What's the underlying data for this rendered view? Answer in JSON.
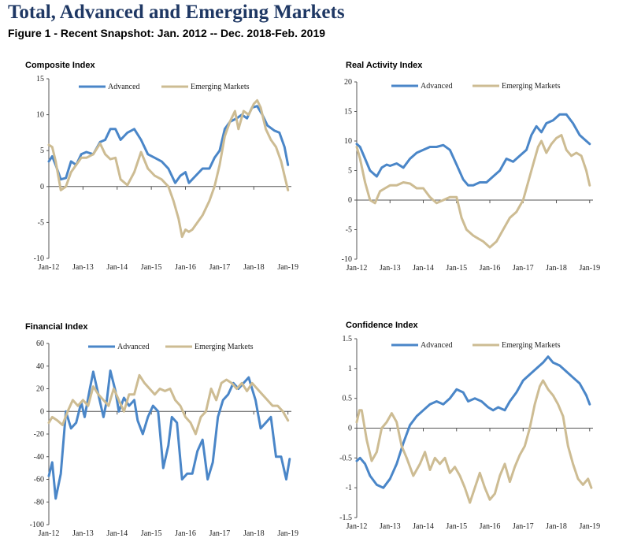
{
  "header": {
    "title": "Total, Advanced and Emerging Markets",
    "subtitle": "Figure 1 - Recent Snapshot: Jan. 2012 -- Dec. 2018-Feb. 2019"
  },
  "colors": {
    "advanced": "#4a86c8",
    "emerging": "#cdbc93",
    "axis": "#555555"
  },
  "chart_data": [
    {
      "type": "line",
      "title": "Composite Index",
      "xlabel": "",
      "ylabel": "",
      "x_ticks": [
        "Jan-12",
        "Jan-13",
        "Jan-14",
        "Jan-15",
        "Jan-16",
        "Jan-17",
        "Jan-18",
        "Jan-19"
      ],
      "x_range": [
        2012.0,
        2019.1
      ],
      "y_ticks": [
        "15",
        "10",
        "5",
        "0",
        "-5",
        "-10"
      ],
      "ylim": [
        -10,
        15
      ],
      "legend_position": "top",
      "series": [
        {
          "name": "Advanced",
          "x": [
            2012.0,
            2012.1,
            2012.2,
            2012.35,
            2012.5,
            2012.65,
            2012.8,
            2012.95,
            2013.1,
            2013.3,
            2013.5,
            2013.65,
            2013.8,
            2013.95,
            2014.1,
            2014.3,
            2014.5,
            2014.7,
            2014.9,
            2015.1,
            2015.3,
            2015.5,
            2015.7,
            2015.85,
            2016.0,
            2016.1,
            2016.3,
            2016.5,
            2016.7,
            2016.85,
            2017.0,
            2017.15,
            2017.3,
            2017.5,
            2017.65,
            2017.8,
            2017.95,
            2018.1,
            2018.25,
            2018.4,
            2018.6,
            2018.75,
            2018.9,
            2019.0
          ],
          "y": [
            3.5,
            4.2,
            3,
            1,
            1.2,
            3.5,
            3,
            4.5,
            4.8,
            4.5,
            6.2,
            6.5,
            8,
            8,
            6.5,
            7.5,
            8,
            6.5,
            4.5,
            4,
            3.5,
            2.5,
            0.5,
            1.5,
            2,
            0.5,
            1.5,
            2.5,
            2.5,
            4,
            5,
            8,
            9,
            9.5,
            10,
            9.5,
            11,
            11.2,
            10,
            8.5,
            7.8,
            7.5,
            5.5,
            3
          ]
        },
        {
          "name": "Emerging Markets",
          "x": [
            2012.0,
            2012.1,
            2012.2,
            2012.35,
            2012.5,
            2012.65,
            2012.8,
            2012.95,
            2013.1,
            2013.3,
            2013.5,
            2013.65,
            2013.8,
            2013.95,
            2014.1,
            2014.3,
            2014.5,
            2014.7,
            2014.9,
            2015.1,
            2015.3,
            2015.5,
            2015.65,
            2015.8,
            2015.9,
            2016.0,
            2016.1,
            2016.2,
            2016.35,
            2016.5,
            2016.7,
            2016.85,
            2017.0,
            2017.15,
            2017.3,
            2017.45,
            2017.55,
            2017.7,
            2017.85,
            2018.0,
            2018.1,
            2018.2,
            2018.35,
            2018.5,
            2018.65,
            2018.8,
            2018.9,
            2019.0
          ],
          "y": [
            5.8,
            5.5,
            3.5,
            -0.5,
            0,
            2,
            3,
            4,
            4,
            4.5,
            6,
            4.5,
            3.8,
            4,
            1,
            0.2,
            2,
            4.8,
            2.5,
            1.5,
            1,
            0,
            -2,
            -4.5,
            -7,
            -6,
            -6.3,
            -6,
            -5,
            -4,
            -2,
            0,
            3,
            7,
            9,
            10.5,
            8,
            10.5,
            10,
            11.5,
            12,
            11,
            8,
            6.5,
            5.5,
            3.5,
            1.5,
            -0.5
          ]
        }
      ]
    },
    {
      "type": "line",
      "title": "Real Activity Index",
      "xlabel": "",
      "ylabel": "",
      "x_ticks": [
        "Jan-12",
        "Jan-13",
        "Jan-14",
        "Jan-15",
        "Jan-16",
        "Jan-17",
        "Jan-18",
        "Jan-19"
      ],
      "x_range": [
        2012.0,
        2019.1
      ],
      "y_ticks": [
        "20",
        "15",
        "10",
        "5",
        "0",
        "-5",
        "-10"
      ],
      "ylim": [
        -10,
        20
      ],
      "legend_position": "top",
      "series": [
        {
          "name": "Advanced",
          "x": [
            2012.0,
            2012.1,
            2012.25,
            2012.4,
            2012.6,
            2012.75,
            2012.9,
            2013.0,
            2013.2,
            2013.4,
            2013.6,
            2013.8,
            2014.0,
            2014.2,
            2014.4,
            2014.6,
            2014.8,
            2015.0,
            2015.2,
            2015.35,
            2015.5,
            2015.7,
            2015.9,
            2016.1,
            2016.3,
            2016.5,
            2016.7,
            2016.9,
            2017.1,
            2017.25,
            2017.4,
            2017.55,
            2017.7,
            2017.9,
            2018.1,
            2018.3,
            2018.5,
            2018.7,
            2018.9,
            2019.0
          ],
          "y": [
            9.5,
            9,
            7,
            5,
            4,
            5.5,
            6,
            5.8,
            6.2,
            5.5,
            7,
            8,
            8.5,
            9,
            9,
            9.3,
            8.5,
            6,
            3.5,
            2.5,
            2.5,
            3,
            3,
            4,
            5,
            7,
            6.5,
            7.5,
            8.5,
            11,
            12.5,
            11.5,
            13,
            13.5,
            14.5,
            14.5,
            13,
            11,
            10,
            9.5
          ]
        },
        {
          "name": "Emerging Markets",
          "x": [
            2012.0,
            2012.1,
            2012.25,
            2012.4,
            2012.55,
            2012.7,
            2012.85,
            2013.0,
            2013.2,
            2013.4,
            2013.6,
            2013.8,
            2014.0,
            2014.2,
            2014.4,
            2014.6,
            2014.8,
            2015.0,
            2015.15,
            2015.3,
            2015.5,
            2015.65,
            2015.8,
            2016.0,
            2016.2,
            2016.4,
            2016.6,
            2016.8,
            2017.0,
            2017.2,
            2017.3,
            2017.45,
            2017.55,
            2017.7,
            2017.85,
            2018.0,
            2018.15,
            2018.3,
            2018.45,
            2018.6,
            2018.75,
            2018.9,
            2019.0
          ],
          "y": [
            9,
            7,
            3,
            0,
            -0.5,
            1.5,
            2,
            2.5,
            2.5,
            3,
            2.8,
            2,
            2,
            0.5,
            -0.5,
            0,
            0.5,
            0.5,
            -3,
            -5,
            -6,
            -6.5,
            -7,
            -8,
            -7,
            -5,
            -3,
            -2,
            0,
            4,
            6,
            9,
            10,
            8,
            9.5,
            10.5,
            11,
            8.5,
            7.5,
            8,
            7.5,
            5,
            2.5
          ]
        }
      ]
    },
    {
      "type": "line",
      "title": "Financial Index",
      "xlabel": "",
      "ylabel": "",
      "x_ticks": [
        "Jan-12",
        "Jan-13",
        "Jan-14",
        "Jan-15",
        "Jan-16",
        "Jan-17",
        "Jan-18",
        "Jan-19"
      ],
      "x_range": [
        2012.0,
        2019.1
      ],
      "y_ticks": [
        "60",
        "40",
        "20",
        "0",
        "-20",
        "-40",
        "-60",
        "-80",
        "-100"
      ],
      "ylim": [
        -100,
        60
      ],
      "legend_position": "top",
      "series": [
        {
          "name": "Advanced",
          "x": [
            2012.0,
            2012.1,
            2012.2,
            2012.35,
            2012.5,
            2012.65,
            2012.8,
            2012.95,
            2013.05,
            2013.2,
            2013.3,
            2013.45,
            2013.6,
            2013.7,
            2013.8,
            2013.95,
            2014.05,
            2014.2,
            2014.35,
            2014.5,
            2014.6,
            2014.75,
            2014.9,
            2015.05,
            2015.2,
            2015.35,
            2015.5,
            2015.6,
            2015.75,
            2015.9,
            2016.05,
            2016.2,
            2016.35,
            2016.5,
            2016.65,
            2016.8,
            2016.95,
            2017.1,
            2017.25,
            2017.4,
            2017.55,
            2017.7,
            2017.85,
            2017.95,
            2018.05,
            2018.2,
            2018.35,
            2018.5,
            2018.65,
            2018.8,
            2018.95,
            2019.05
          ],
          "y": [
            -57,
            -45,
            -77,
            -55,
            0,
            -15,
            -10,
            8,
            -5,
            20,
            35,
            15,
            -5,
            10,
            36,
            18,
            0,
            12,
            5,
            10,
            -8,
            -20,
            -5,
            5,
            0,
            -50,
            -30,
            -5,
            -10,
            -60,
            -55,
            -55,
            -35,
            -25,
            -60,
            -45,
            -5,
            10,
            15,
            25,
            20,
            25,
            30,
            20,
            10,
            -15,
            -10,
            -5,
            -40,
            -40,
            -60,
            -42
          ]
        },
        {
          "name": "Emerging Markets",
          "x": [
            2012.0,
            2012.1,
            2012.25,
            2012.4,
            2012.55,
            2012.7,
            2012.85,
            2013.0,
            2013.15,
            2013.3,
            2013.45,
            2013.6,
            2013.75,
            2013.9,
            2014.05,
            2014.2,
            2014.35,
            2014.5,
            2014.65,
            2014.8,
            2014.95,
            2015.1,
            2015.25,
            2015.4,
            2015.55,
            2015.7,
            2015.85,
            2016.0,
            2016.15,
            2016.3,
            2016.45,
            2016.6,
            2016.75,
            2016.9,
            2017.05,
            2017.2,
            2017.35,
            2017.5,
            2017.65,
            2017.8,
            2017.95,
            2018.1,
            2018.25,
            2018.4,
            2018.55,
            2018.7,
            2018.85,
            2019.0
          ],
          "y": [
            -10,
            -5,
            -8,
            -12,
            0,
            10,
            5,
            10,
            5,
            22,
            15,
            10,
            5,
            20,
            10,
            0,
            15,
            15,
            32,
            25,
            20,
            15,
            20,
            18,
            20,
            10,
            5,
            -5,
            -10,
            -20,
            -5,
            0,
            20,
            10,
            25,
            28,
            25,
            20,
            25,
            18,
            25,
            20,
            15,
            10,
            5,
            5,
            0,
            -8
          ]
        }
      ]
    },
    {
      "type": "line",
      "title": "Confidence Index",
      "xlabel": "",
      "ylabel": "",
      "x_ticks": [
        "Jan-12",
        "Jan-13",
        "Jan-14",
        "Jan-15",
        "Jan-16",
        "Jan-17",
        "Jan-18",
        "Jan-19"
      ],
      "x_range": [
        2012.0,
        2019.1
      ],
      "y_ticks": [
        "1.5",
        "1",
        "0.5",
        "0",
        "-0.5",
        "-1",
        "-1.5"
      ],
      "ylim": [
        -1.5,
        1.5
      ],
      "legend_position": "top",
      "series": [
        {
          "name": "Advanced",
          "x": [
            2012.0,
            2012.1,
            2012.25,
            2012.4,
            2012.6,
            2012.8,
            2013.0,
            2013.2,
            2013.4,
            2013.6,
            2013.8,
            2014.0,
            2014.2,
            2014.4,
            2014.6,
            2014.8,
            2015.0,
            2015.2,
            2015.35,
            2015.55,
            2015.75,
            2015.95,
            2016.1,
            2016.25,
            2016.45,
            2016.6,
            2016.8,
            2017.0,
            2017.2,
            2017.4,
            2017.6,
            2017.75,
            2017.9,
            2018.1,
            2018.3,
            2018.5,
            2018.7,
            2018.9,
            2019.0
          ],
          "y": [
            -0.55,
            -0.5,
            -0.6,
            -0.8,
            -0.95,
            -1.0,
            -0.85,
            -0.6,
            -0.25,
            0.05,
            0.2,
            0.3,
            0.4,
            0.45,
            0.4,
            0.5,
            0.65,
            0.6,
            0.45,
            0.5,
            0.45,
            0.35,
            0.3,
            0.35,
            0.3,
            0.45,
            0.6,
            0.8,
            0.9,
            1.0,
            1.1,
            1.2,
            1.1,
            1.05,
            0.95,
            0.85,
            0.75,
            0.55,
            0.4
          ]
        },
        {
          "name": "Emerging Markets",
          "x": [
            2012.0,
            2012.08,
            2012.15,
            2012.3,
            2012.45,
            2012.6,
            2012.75,
            2012.9,
            2013.05,
            2013.2,
            2013.35,
            2013.5,
            2013.7,
            2013.9,
            2014.05,
            2014.2,
            2014.35,
            2014.5,
            2014.65,
            2014.8,
            2014.95,
            2015.1,
            2015.25,
            2015.4,
            2015.55,
            2015.7,
            2015.85,
            2016.0,
            2016.15,
            2016.3,
            2016.45,
            2016.6,
            2016.75,
            2016.9,
            2017.05,
            2017.2,
            2017.35,
            2017.5,
            2017.6,
            2017.75,
            2017.9,
            2018.05,
            2018.2,
            2018.35,
            2018.5,
            2018.65,
            2018.8,
            2018.95,
            2019.05
          ],
          "y": [
            0.1,
            0.3,
            0.3,
            -0.2,
            -0.55,
            -0.4,
            0,
            0.1,
            0.25,
            0.1,
            -0.3,
            -0.5,
            -0.8,
            -0.6,
            -0.4,
            -0.7,
            -0.5,
            -0.6,
            -0.5,
            -0.75,
            -0.65,
            -0.8,
            -1.0,
            -1.25,
            -1.0,
            -0.75,
            -1.0,
            -1.2,
            -1.1,
            -0.8,
            -0.6,
            -0.9,
            -0.65,
            -0.45,
            -0.3,
            0,
            0.4,
            0.7,
            0.8,
            0.65,
            0.55,
            0.4,
            0.2,
            -0.3,
            -0.6,
            -0.85,
            -0.95,
            -0.85,
            -1.0
          ]
        }
      ]
    }
  ]
}
